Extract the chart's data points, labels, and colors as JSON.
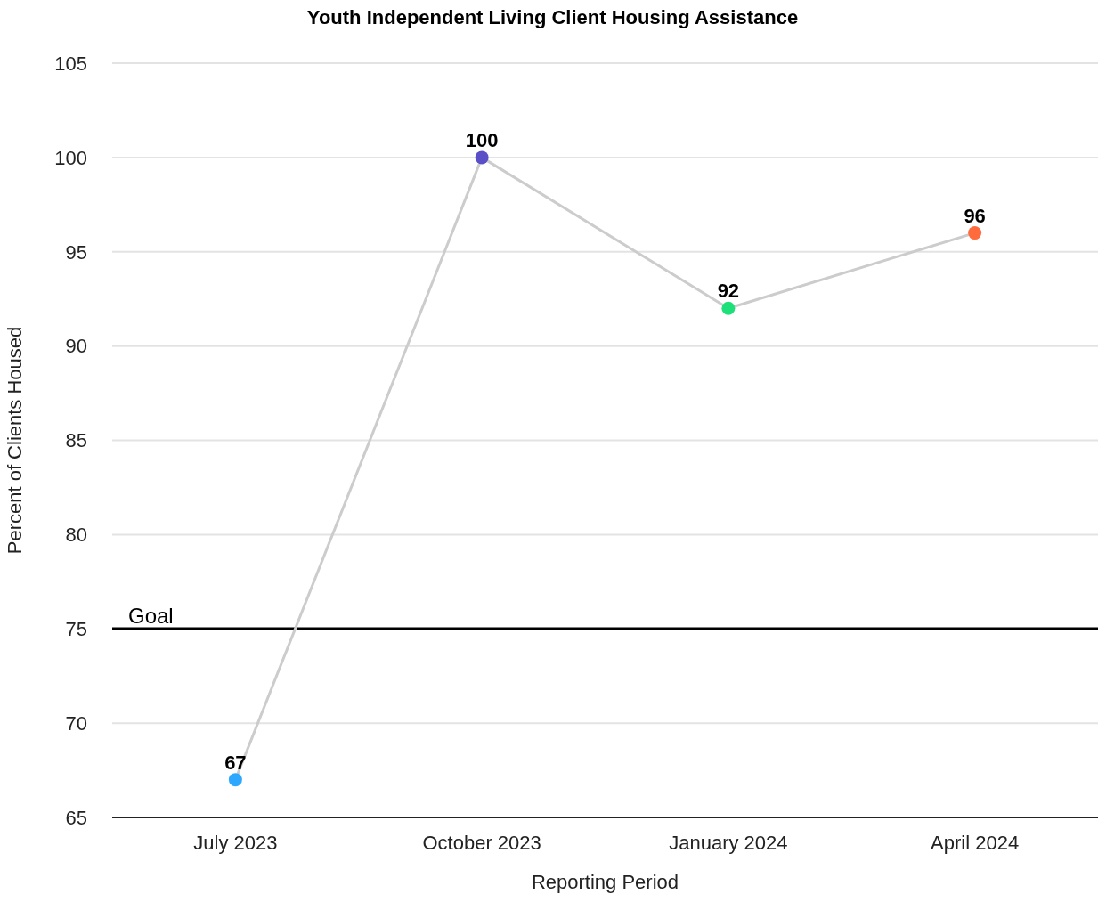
{
  "chart_data": {
    "type": "line",
    "title": "Youth Independent Living Client Housing Assistance",
    "xlabel": "Reporting Period",
    "ylabel": "Percent of Clients Housed",
    "categories": [
      "July 2023",
      "October 2023",
      "January 2024",
      "April 2024"
    ],
    "series": [
      {
        "color": "#cccccc",
        "colors": [
          "#2ea8ff",
          "#5b4fc8",
          "#1de07a",
          "#ff6b3d"
        ],
        "values": [
          67,
          100,
          92,
          96
        ]
      }
    ],
    "ylim": [
      65,
      105
    ],
    "yticks": [
      65,
      70,
      75,
      80,
      85,
      90,
      95,
      100,
      105
    ],
    "grid": "y",
    "marker": "circle",
    "line_style": "solid",
    "data_labels": true,
    "ref_lines": [
      {
        "axis": "y",
        "value": 75,
        "label": "Goal",
        "color": "#000000"
      }
    ]
  }
}
